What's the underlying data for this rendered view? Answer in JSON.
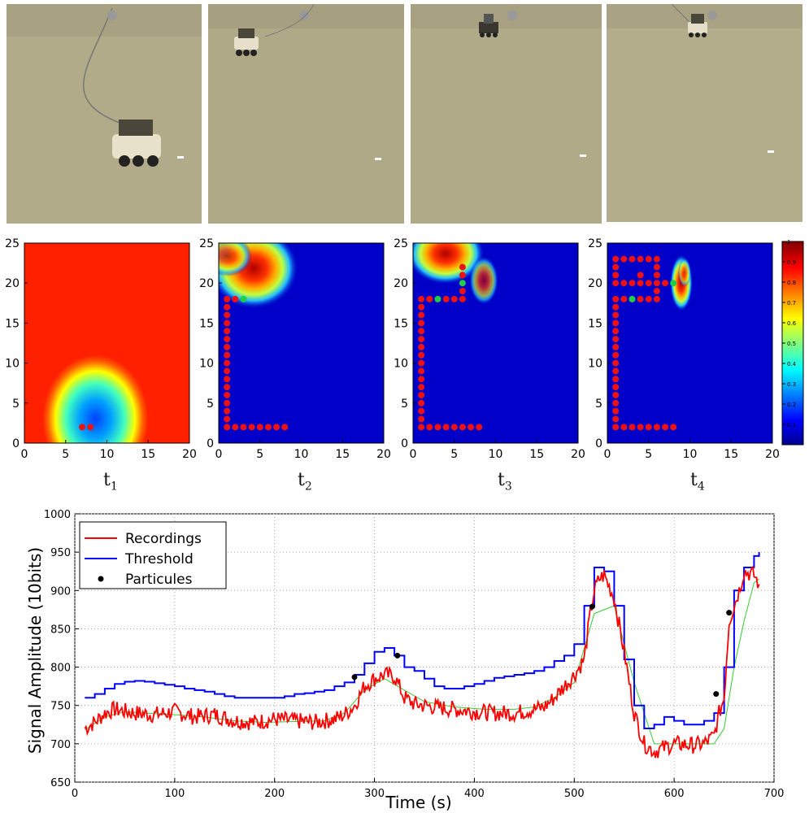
{
  "photos": [
    {
      "name": "frame-1"
    },
    {
      "name": "frame-2"
    },
    {
      "name": "frame-3"
    },
    {
      "name": "frame-4"
    }
  ],
  "heatmaps": {
    "x_ticks": [
      "0",
      "5",
      "10",
      "15",
      "20"
    ],
    "y_ticks": [
      "0",
      "5",
      "10",
      "15",
      "20",
      "25"
    ],
    "xlim": [
      0,
      20
    ],
    "ylim": [
      0,
      25
    ],
    "colorbar_ticks": [
      "1",
      "0.9",
      "0.8",
      "0.7",
      "0.6",
      "0.5",
      "0.4",
      "0.3",
      "0.2",
      "0.1"
    ],
    "labels": [
      {
        "base": "t",
        "sub": "1"
      },
      {
        "base": "t",
        "sub": "2"
      },
      {
        "base": "t",
        "sub": "3"
      },
      {
        "base": "t",
        "sub": "4"
      }
    ],
    "paths": [
      {
        "red": [
          [
            7,
            2
          ],
          [
            8,
            2
          ]
        ],
        "green": []
      },
      {
        "red": [
          [
            1,
            2
          ],
          [
            2,
            2
          ],
          [
            3,
            2
          ],
          [
            4,
            2
          ],
          [
            5,
            2
          ],
          [
            6,
            2
          ],
          [
            7,
            2
          ],
          [
            8,
            2
          ],
          [
            1,
            3
          ],
          [
            1,
            4
          ],
          [
            1,
            5
          ],
          [
            1,
            6
          ],
          [
            1,
            7
          ],
          [
            1,
            8
          ],
          [
            1,
            9
          ],
          [
            1,
            10
          ],
          [
            1,
            11
          ],
          [
            1,
            12
          ],
          [
            1,
            13
          ],
          [
            1,
            14
          ],
          [
            1,
            15
          ],
          [
            1,
            16
          ],
          [
            1,
            17
          ],
          [
            1,
            18
          ],
          [
            2,
            18
          ]
        ],
        "green": [
          [
            3,
            18
          ]
        ]
      },
      {
        "red": [
          [
            1,
            2
          ],
          [
            2,
            2
          ],
          [
            3,
            2
          ],
          [
            4,
            2
          ],
          [
            5,
            2
          ],
          [
            6,
            2
          ],
          [
            7,
            2
          ],
          [
            8,
            2
          ],
          [
            1,
            3
          ],
          [
            1,
            4
          ],
          [
            1,
            5
          ],
          [
            1,
            6
          ],
          [
            1,
            7
          ],
          [
            1,
            8
          ],
          [
            1,
            9
          ],
          [
            1,
            10
          ],
          [
            1,
            11
          ],
          [
            1,
            12
          ],
          [
            1,
            13
          ],
          [
            1,
            14
          ],
          [
            1,
            15
          ],
          [
            1,
            16
          ],
          [
            1,
            17
          ],
          [
            1,
            18
          ],
          [
            2,
            18
          ],
          [
            4,
            18
          ],
          [
            5,
            18
          ],
          [
            6,
            18
          ],
          [
            6,
            19
          ],
          [
            6,
            21
          ],
          [
            6,
            22
          ]
        ],
        "green": [
          [
            3,
            18
          ],
          [
            6,
            20
          ]
        ]
      },
      {
        "red": [
          [
            1,
            2
          ],
          [
            2,
            2
          ],
          [
            3,
            2
          ],
          [
            4,
            2
          ],
          [
            5,
            2
          ],
          [
            6,
            2
          ],
          [
            7,
            2
          ],
          [
            8,
            2
          ],
          [
            1,
            3
          ],
          [
            1,
            4
          ],
          [
            1,
            5
          ],
          [
            1,
            6
          ],
          [
            1,
            7
          ],
          [
            1,
            8
          ],
          [
            1,
            9
          ],
          [
            1,
            10
          ],
          [
            1,
            11
          ],
          [
            1,
            12
          ],
          [
            1,
            13
          ],
          [
            1,
            14
          ],
          [
            1,
            15
          ],
          [
            1,
            16
          ],
          [
            1,
            17
          ],
          [
            1,
            18
          ],
          [
            2,
            18
          ],
          [
            4,
            18
          ],
          [
            5,
            18
          ],
          [
            6,
            18
          ],
          [
            6,
            19
          ],
          [
            6,
            20
          ],
          [
            7,
            20
          ],
          [
            6,
            21
          ],
          [
            6,
            22
          ],
          [
            6,
            23
          ],
          [
            5,
            23
          ],
          [
            4,
            23
          ],
          [
            3,
            23
          ],
          [
            2,
            23
          ],
          [
            1,
            23
          ],
          [
            1,
            22
          ],
          [
            1,
            21
          ],
          [
            1,
            20
          ],
          [
            2,
            20
          ],
          [
            3,
            20
          ],
          [
            4,
            20
          ],
          [
            4,
            21
          ],
          [
            5,
            20
          ]
        ],
        "green": [
          [
            3,
            18
          ],
          [
            8,
            20
          ]
        ]
      }
    ]
  },
  "chart_data": {
    "type": "line",
    "xlabel": "Time (s)",
    "ylabel": "Signal Amplitude (10bits)",
    "xlim": [
      0,
      700
    ],
    "ylim": [
      650,
      1000
    ],
    "x_ticks": [
      0,
      100,
      200,
      300,
      400,
      500,
      600,
      700
    ],
    "y_ticks": [
      650,
      700,
      750,
      800,
      850,
      900,
      950,
      1000
    ],
    "grid": true,
    "legend_position": "top-left",
    "series": [
      {
        "name": "Recordings",
        "color": "#ff0000",
        "x": [
          10,
          20,
          30,
          40,
          60,
          80,
          100,
          120,
          140,
          160,
          180,
          200,
          220,
          240,
          260,
          270,
          280,
          290,
          300,
          310,
          320,
          330,
          340,
          360,
          380,
          400,
          420,
          440,
          460,
          470,
          480,
          490,
          500,
          505,
          510,
          515,
          520,
          525,
          530,
          540,
          550,
          560,
          570,
          580,
          590,
          600,
          620,
          630,
          640,
          645,
          650,
          655,
          660,
          665,
          670,
          680,
          685
        ],
        "y": [
          720,
          728,
          740,
          745,
          740,
          738,
          742,
          735,
          738,
          730,
          728,
          732,
          730,
          728,
          732,
          738,
          750,
          775,
          785,
          790,
          788,
          760,
          752,
          748,
          745,
          742,
          740,
          740,
          745,
          748,
          760,
          775,
          790,
          800,
          810,
          860,
          900,
          915,
          920,
          890,
          820,
          740,
          700,
          690,
          695,
          700,
          698,
          700,
          710,
          740,
          760,
          860,
          880,
          900,
          925,
          920,
          908
        ]
      },
      {
        "name": "Threshold",
        "color": "#0000ff",
        "x": [
          10,
          20,
          30,
          40,
          50,
          60,
          70,
          80,
          90,
          100,
          110,
          120,
          130,
          140,
          150,
          160,
          170,
          180,
          190,
          200,
          210,
          220,
          230,
          240,
          250,
          260,
          270,
          280,
          290,
          300,
          310,
          320,
          330,
          340,
          350,
          360,
          370,
          380,
          390,
          400,
          410,
          420,
          430,
          440,
          450,
          460,
          470,
          480,
          490,
          500,
          510,
          520,
          530,
          540,
          550,
          560,
          570,
          580,
          590,
          600,
          610,
          620,
          630,
          640,
          650,
          660,
          670,
          680,
          685
        ],
        "y": [
          760,
          765,
          772,
          778,
          781,
          782,
          781,
          779,
          777,
          775,
          772,
          770,
          768,
          765,
          762,
          760,
          760,
          760,
          760,
          760,
          762,
          765,
          766,
          768,
          770,
          775,
          780,
          790,
          805,
          820,
          825,
          815,
          800,
          795,
          785,
          775,
          772,
          772,
          775,
          778,
          782,
          786,
          788,
          790,
          792,
          795,
          800,
          808,
          815,
          830,
          880,
          930,
          925,
          880,
          810,
          750,
          720,
          725,
          735,
          730,
          725,
          725,
          730,
          740,
          800,
          900,
          930,
          945,
          950
        ]
      },
      {
        "name": "Particules",
        "color": "#000000",
        "x": [
          280,
          323,
          518,
          642,
          655
        ],
        "y": [
          787,
          815,
          879,
          765,
          871
        ]
      }
    ],
    "fill_series": {
      "color": "#33cc33",
      "x": [
        10,
        30,
        50,
        70,
        100,
        130,
        160,
        190,
        220,
        250,
        270,
        290,
        310,
        330,
        350,
        380,
        410,
        440,
        460,
        480,
        500,
        520,
        540,
        560,
        580,
        600,
        620,
        640,
        650,
        660,
        670,
        680,
        685
      ],
      "y": [
        718,
        735,
        742,
        740,
        738,
        735,
        730,
        728,
        729,
        730,
        740,
        770,
        785,
        770,
        755,
        748,
        745,
        745,
        748,
        760,
        780,
        870,
        880,
        780,
        700,
        700,
        700,
        700,
        720,
        800,
        860,
        910,
        915
      ]
    }
  }
}
